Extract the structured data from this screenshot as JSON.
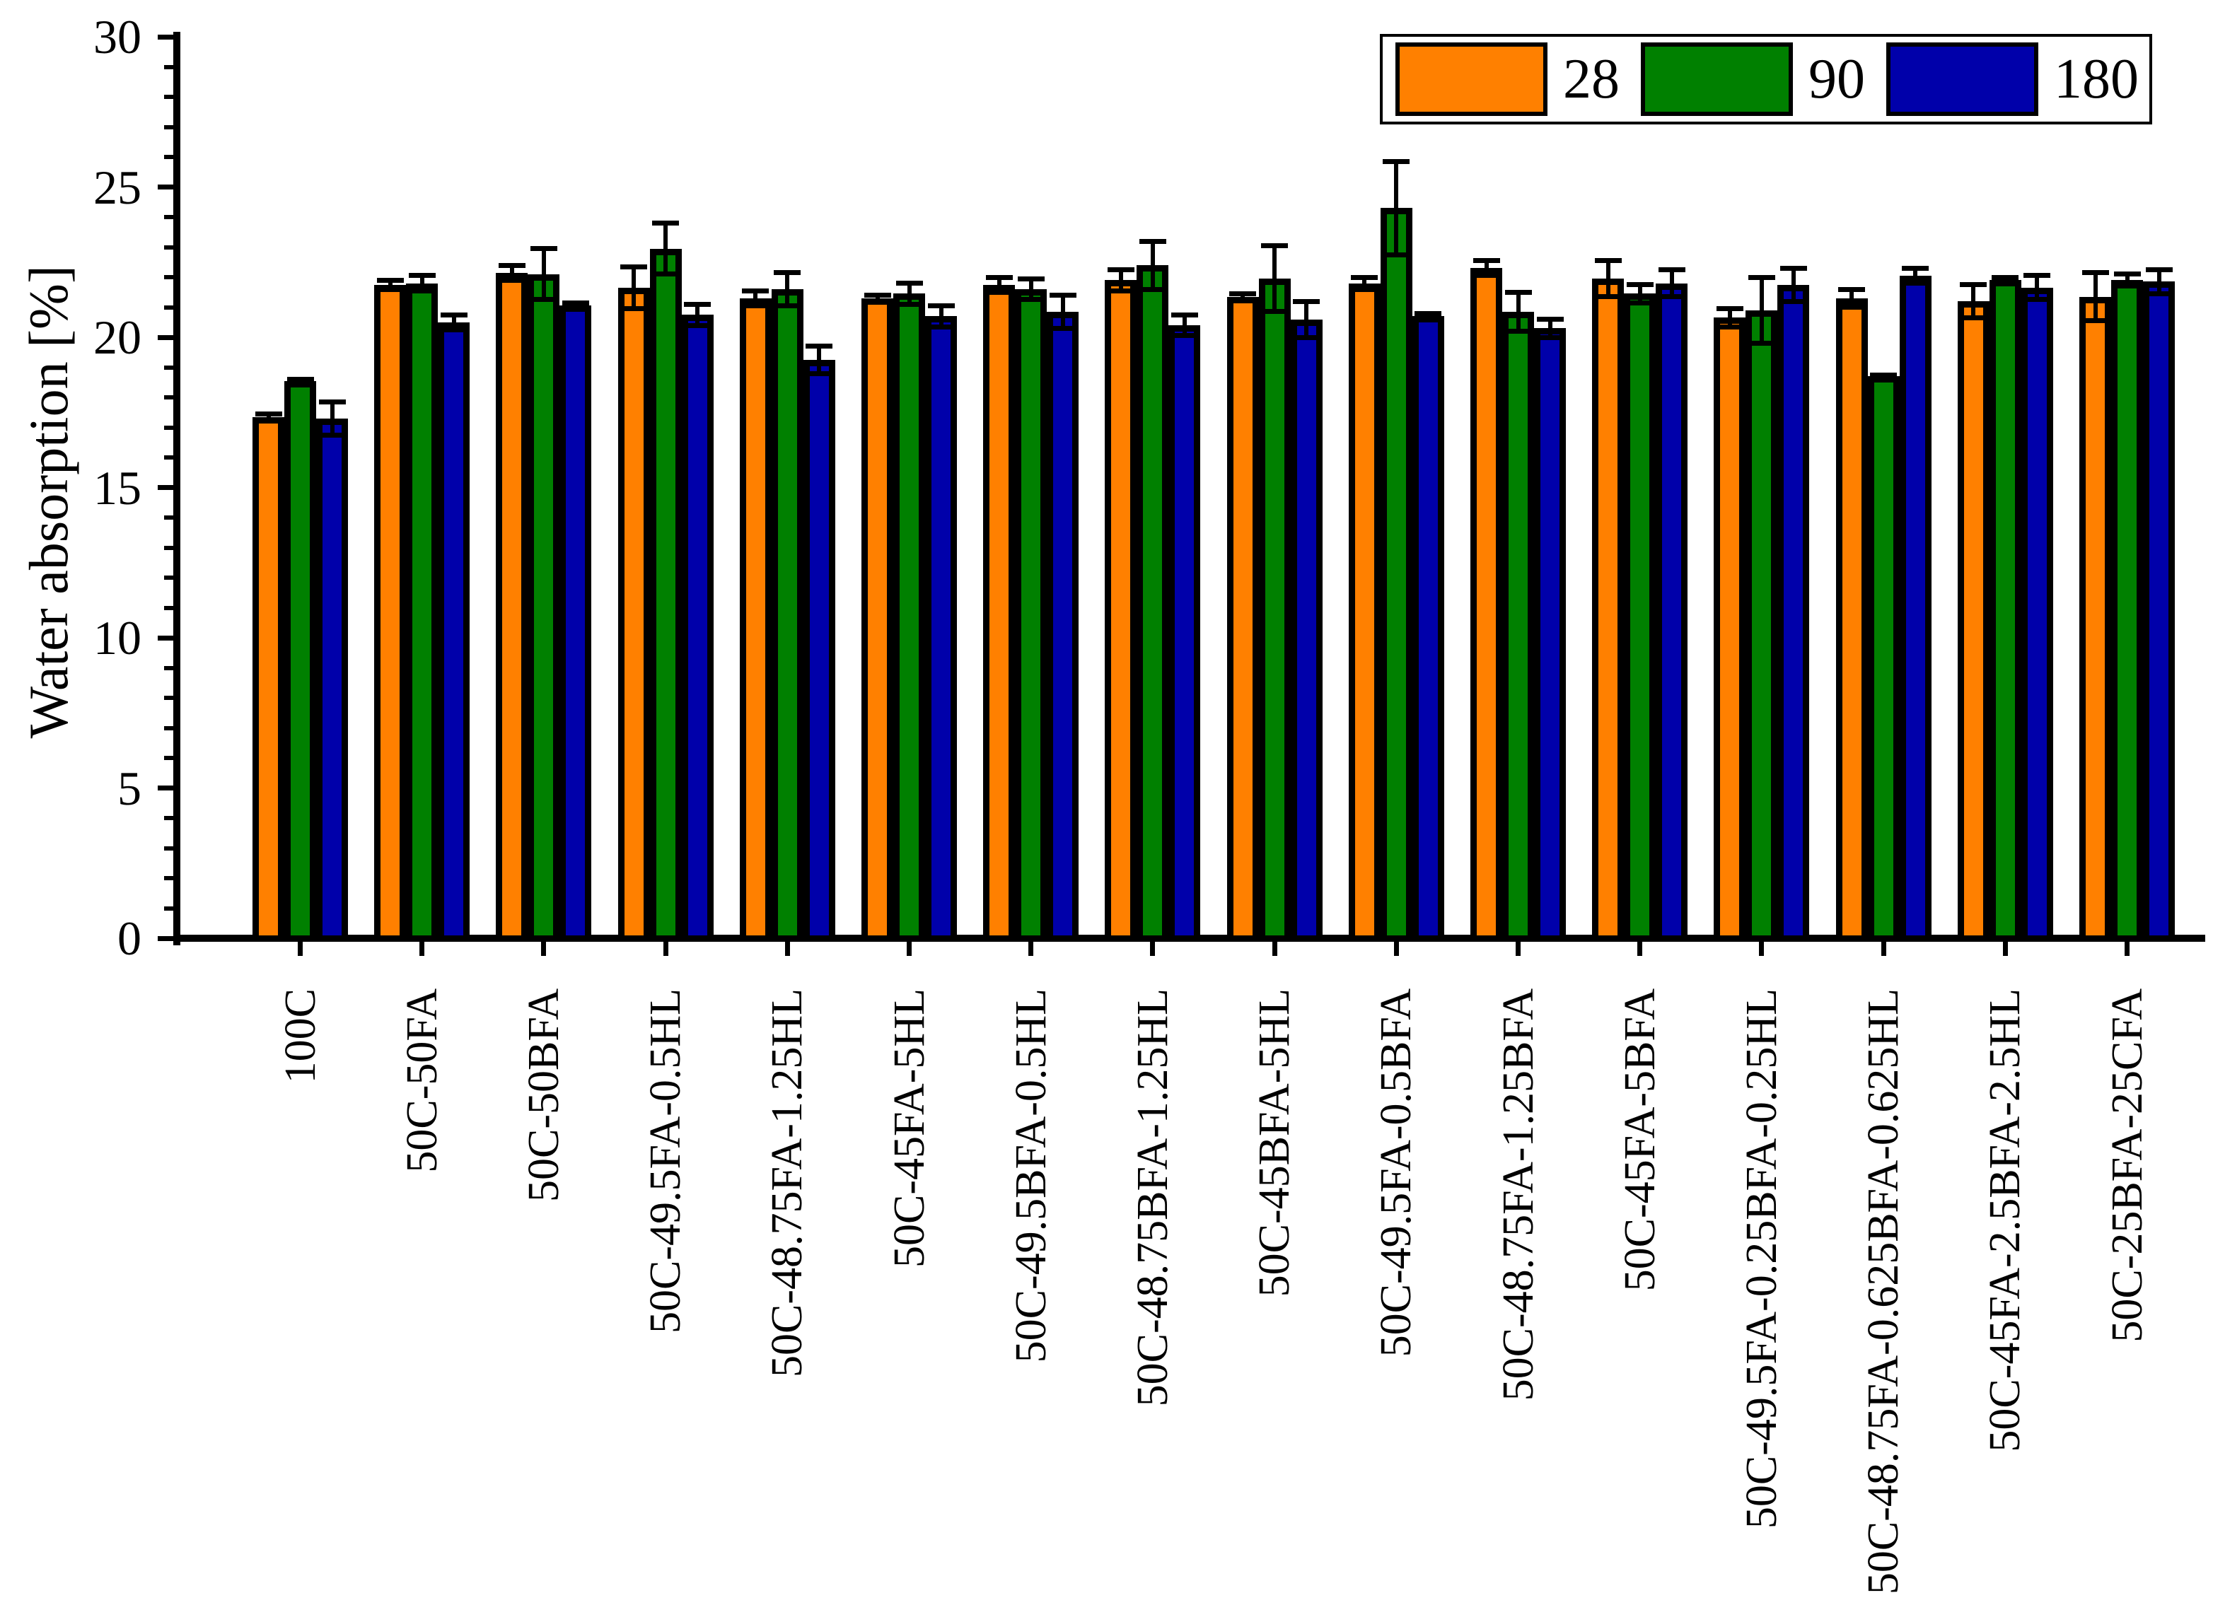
{
  "chart_data": {
    "type": "bar",
    "title": "",
    "xlabel": "",
    "ylabel": "Water absorption [%]",
    "ylim": [
      0,
      30
    ],
    "ytick_step": 5,
    "ytick_minor_step": 1,
    "ytick_labels": [
      "0",
      "5",
      "10",
      "15",
      "20",
      "25",
      "30"
    ],
    "grid": "off",
    "legend_position": "top-right",
    "legend_entries": [
      "28",
      "90",
      "180"
    ],
    "categories": [
      "100C",
      "50C-50FA",
      "50C-50BFA",
      "50C-49.5FA-0.5HL",
      "50C-48.75FA-1.25HL",
      "50C-45FA-5HL",
      "50C-49.5BFA-0.5HL",
      "50C-48.75BFA-1.25HL",
      "50C-45BFA-5HL",
      "50C-49.5FA-0.5BFA",
      "50C-48.75FA-1.25BFA",
      "50C-45FA-5BFA",
      "50C-49.5FA-0.25BFA-0.25HL",
      "50C-48.75FA-0.625BFA-0.625HL",
      "50C-45FA-2.5BFA-2.5HL",
      "50C-25BFA-25CFA"
    ],
    "series": [
      {
        "name": "28",
        "color": "#FF8000",
        "values": [
          17.35,
          21.75,
          22.15,
          21.65,
          21.3,
          21.3,
          21.75,
          21.9,
          21.35,
          21.8,
          22.3,
          21.95,
          20.65,
          21.3,
          21.2,
          21.35
        ],
        "errors": [
          0.1,
          0.15,
          0.25,
          0.7,
          0.25,
          0.1,
          0.25,
          0.35,
          0.1,
          0.2,
          0.25,
          0.6,
          0.3,
          0.3,
          0.55,
          0.8
        ]
      },
      {
        "name": "90",
        "color": "#008000",
        "values": [
          18.55,
          21.8,
          22.1,
          22.95,
          21.6,
          21.45,
          21.6,
          22.4,
          21.95,
          24.3,
          20.85,
          21.45,
          20.9,
          18.7,
          21.9,
          21.9
        ],
        "errors": [
          0.05,
          0.25,
          0.85,
          0.85,
          0.55,
          0.35,
          0.35,
          0.8,
          1.1,
          1.55,
          0.65,
          0.3,
          1.1,
          0.05,
          0.1,
          0.2
        ]
      },
      {
        "name": "180",
        "color": "#0000AA",
        "values": [
          17.3,
          20.5,
          21.05,
          20.75,
          19.25,
          20.7,
          20.85,
          20.4,
          20.6,
          20.7,
          20.3,
          21.8,
          21.75,
          22.05,
          21.65,
          21.85
        ],
        "errors": [
          0.55,
          0.25,
          0.1,
          0.35,
          0.45,
          0.35,
          0.55,
          0.35,
          0.6,
          0.1,
          0.3,
          0.45,
          0.55,
          0.25,
          0.4,
          0.4
        ]
      }
    ]
  }
}
